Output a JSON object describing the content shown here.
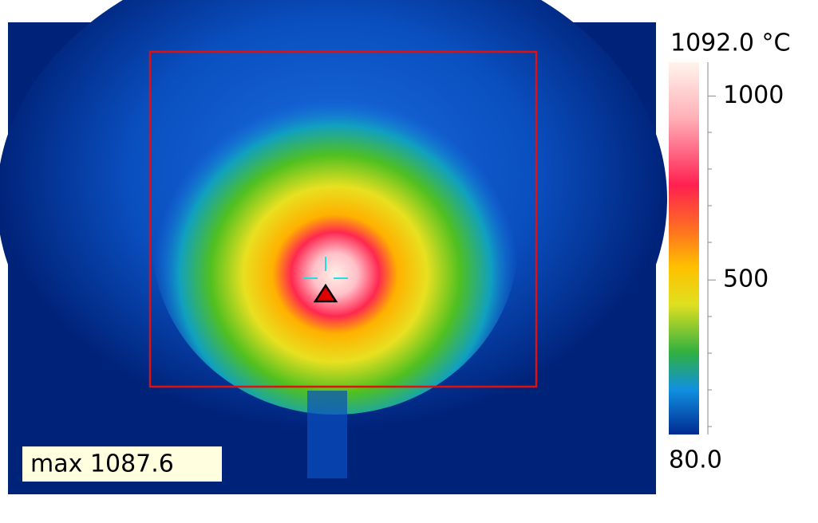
{
  "image": {
    "max_label": "max 1087.6"
  },
  "colorbar": {
    "top": {
      "value": 1092.0,
      "label": "1092.0 °C"
    },
    "bottom": {
      "value": 80.0,
      "label": "80.0"
    },
    "ticks": [
      1000,
      500
    ]
  }
}
